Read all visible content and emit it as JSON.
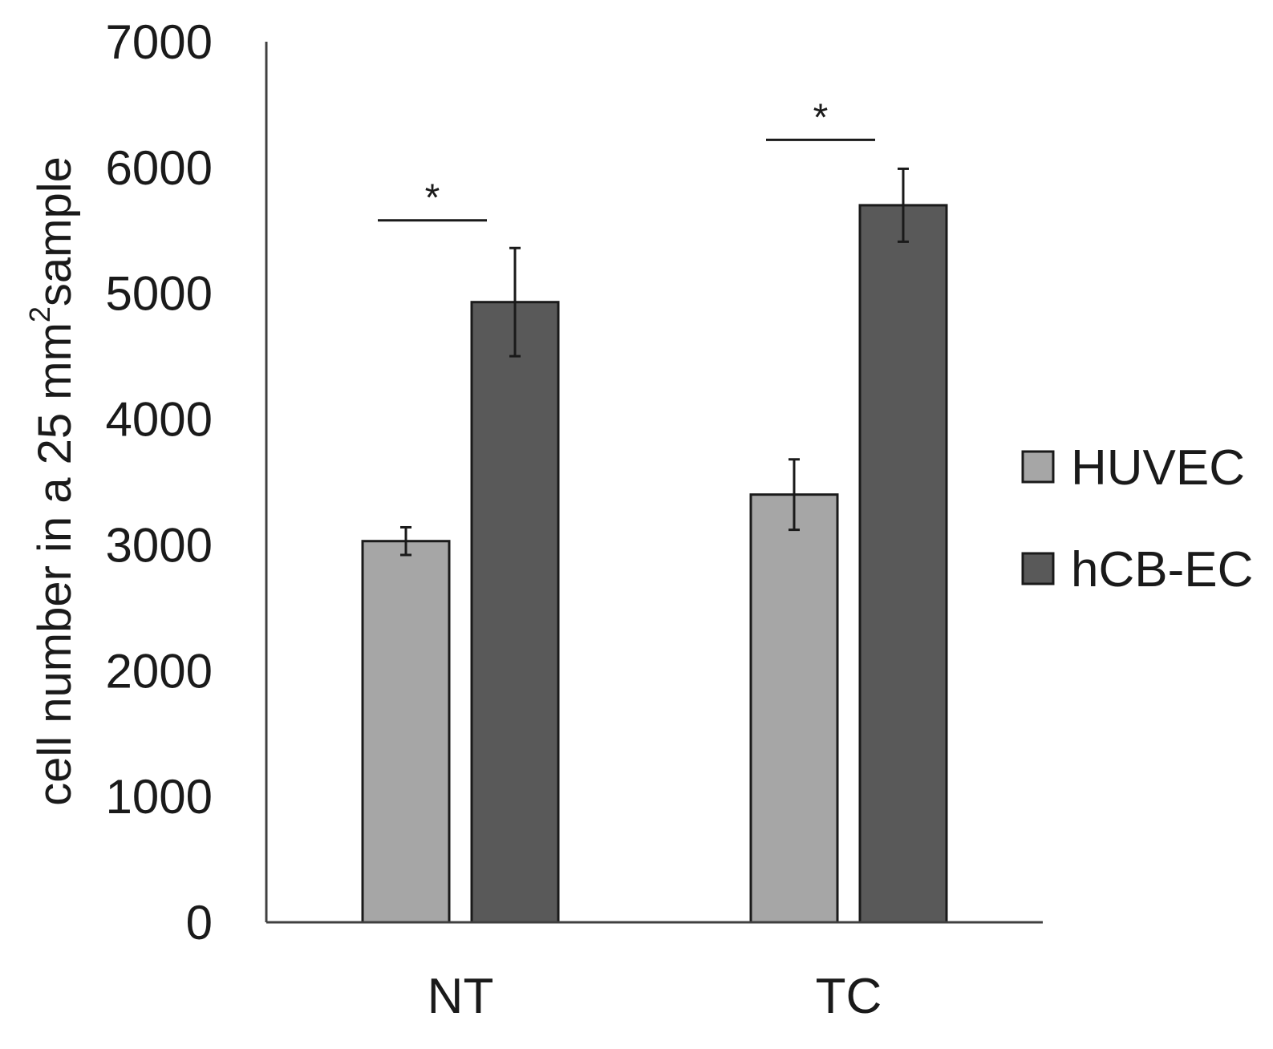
{
  "chart_data": {
    "type": "bar",
    "categories": [
      "NT",
      "TC"
    ],
    "series": [
      {
        "name": "HUVEC",
        "values": [
          3030,
          3400
        ],
        "errors": [
          110,
          280
        ],
        "color": "#a6a6a6"
      },
      {
        "name": "hCB-EC",
        "values": [
          4930,
          5700
        ],
        "errors": [
          430,
          290
        ],
        "color": "#595959"
      }
    ],
    "ylabel_main": "cell number in a 25 mm",
    "ylabel_sup": "2",
    "ylabel_tail": "sample",
    "xlabel": "",
    "ylim": [
      0,
      7000
    ],
    "yticks": [
      0,
      1000,
      2000,
      3000,
      4000,
      5000,
      6000,
      7000
    ],
    "grid": false,
    "legend_position": "right",
    "significance": [
      {
        "category": "NT",
        "label": "*",
        "level": 5580
      },
      {
        "category": "TC",
        "label": "*",
        "level": 6220
      }
    ]
  }
}
